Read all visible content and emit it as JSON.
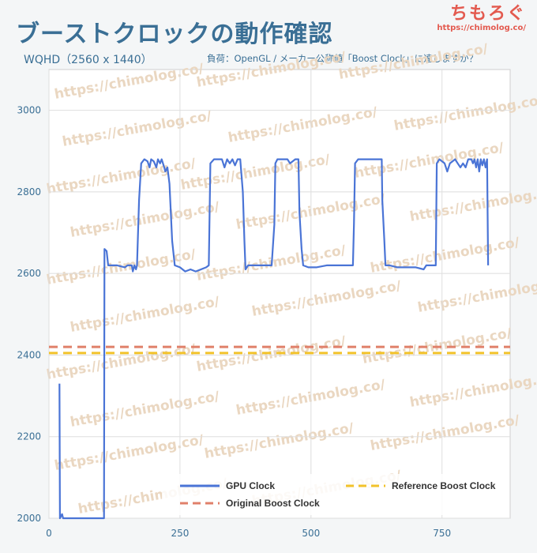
{
  "header": {
    "title": "ブーストクロックの動作確認",
    "subtitle_left": "WQHD（2560 x 1440）",
    "subtitle_right": "負荷：OpenGL / メーカー公称値「Boost Clock」に達しますか？"
  },
  "logo": {
    "name": "ちもろぐ",
    "url": "https://chimolog.co/"
  },
  "watermark": "https://chimolog.co/",
  "colors": {
    "gpu_clock": "#4a74d6",
    "reference_boost": "#f2c22a",
    "original_boost": "#e0806a",
    "axis_text": "#3a6f95",
    "grid": "#dedede"
  },
  "chart_data": {
    "type": "line",
    "title": "",
    "xlabel": "",
    "ylabel": "",
    "xlim": [
      0,
      880
    ],
    "ylim": [
      2000,
      3100
    ],
    "xticks": [
      0,
      250,
      500,
      750
    ],
    "yticks": [
      2000,
      2200,
      2400,
      2600,
      2800,
      3000
    ],
    "grid": true,
    "legend_position": "bottom",
    "series": [
      {
        "name": "GPU Clock",
        "style": "solid",
        "points": [
          [
            20,
            2330
          ],
          [
            21,
            2000
          ],
          [
            25,
            2010
          ],
          [
            27,
            2000
          ],
          [
            105,
            2000
          ],
          [
            106,
            2660
          ],
          [
            110,
            2655
          ],
          [
            113,
            2620
          ],
          [
            130,
            2620
          ],
          [
            145,
            2615
          ],
          [
            150,
            2620
          ],
          [
            158,
            2620
          ],
          [
            160,
            2605
          ],
          [
            163,
            2620
          ],
          [
            166,
            2610
          ],
          [
            168,
            2620
          ],
          [
            172,
            2780
          ],
          [
            176,
            2870
          ],
          [
            182,
            2880
          ],
          [
            188,
            2875
          ],
          [
            192,
            2860
          ],
          [
            195,
            2880
          ],
          [
            200,
            2875
          ],
          [
            205,
            2860
          ],
          [
            208,
            2880
          ],
          [
            212,
            2870
          ],
          [
            215,
            2880
          ],
          [
            220,
            2860
          ],
          [
            222,
            2850
          ],
          [
            226,
            2860
          ],
          [
            230,
            2820
          ],
          [
            235,
            2680
          ],
          [
            240,
            2620
          ],
          [
            250,
            2615
          ],
          [
            260,
            2605
          ],
          [
            270,
            2610
          ],
          [
            280,
            2605
          ],
          [
            300,
            2615
          ],
          [
            305,
            2620
          ],
          [
            308,
            2870
          ],
          [
            315,
            2880
          ],
          [
            330,
            2880
          ],
          [
            335,
            2860
          ],
          [
            340,
            2880
          ],
          [
            345,
            2870
          ],
          [
            350,
            2880
          ],
          [
            355,
            2865
          ],
          [
            360,
            2880
          ],
          [
            365,
            2880
          ],
          [
            370,
            2800
          ],
          [
            373,
            2680
          ],
          [
            375,
            2610
          ],
          [
            380,
            2620
          ],
          [
            390,
            2620
          ],
          [
            400,
            2620
          ],
          [
            410,
            2620
          ],
          [
            425,
            2620
          ],
          [
            430,
            2720
          ],
          [
            432,
            2870
          ],
          [
            436,
            2880
          ],
          [
            445,
            2880
          ],
          [
            455,
            2880
          ],
          [
            460,
            2870
          ],
          [
            470,
            2880
          ],
          [
            476,
            2880
          ],
          [
            478,
            2750
          ],
          [
            482,
            2660
          ],
          [
            485,
            2620
          ],
          [
            495,
            2615
          ],
          [
            510,
            2615
          ],
          [
            530,
            2620
          ],
          [
            580,
            2620
          ],
          [
            582,
            2720
          ],
          [
            584,
            2870
          ],
          [
            590,
            2880
          ],
          [
            600,
            2880
          ],
          [
            610,
            2880
          ],
          [
            620,
            2880
          ],
          [
            635,
            2880
          ],
          [
            636,
            2780
          ],
          [
            640,
            2680
          ],
          [
            642,
            2620
          ],
          [
            650,
            2620
          ],
          [
            665,
            2615
          ],
          [
            700,
            2615
          ],
          [
            715,
            2610
          ],
          [
            720,
            2620
          ],
          [
            738,
            2620
          ],
          [
            740,
            2870
          ],
          [
            745,
            2880
          ],
          [
            755,
            2870
          ],
          [
            760,
            2850
          ],
          [
            765,
            2870
          ],
          [
            770,
            2875
          ],
          [
            775,
            2880
          ],
          [
            780,
            2870
          ],
          [
            785,
            2860
          ],
          [
            790,
            2870
          ],
          [
            795,
            2860
          ],
          [
            800,
            2880
          ],
          [
            806,
            2880
          ],
          [
            809,
            2870
          ],
          [
            812,
            2880
          ],
          [
            815,
            2860
          ],
          [
            818,
            2880
          ],
          [
            821,
            2850
          ],
          [
            824,
            2880
          ],
          [
            827,
            2865
          ],
          [
            830,
            2880
          ],
          [
            833,
            2860
          ],
          [
            836,
            2880
          ],
          [
            838,
            2620
          ]
        ]
      },
      {
        "name": "Reference Boost Clock",
        "style": "dashed",
        "value": 2405
      },
      {
        "name": "Original Boost Clock",
        "style": "dashed",
        "value": 2420
      }
    ]
  }
}
